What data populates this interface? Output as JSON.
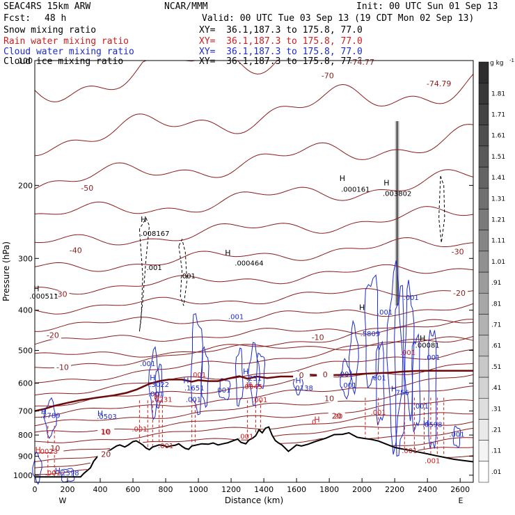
{
  "header": {
    "model": "SEAC4RS 15km ARW",
    "org": "NCAR/MMM",
    "init": "Init: 00 UTC Sun 01 Sep 13",
    "fcst_label": "Fcst:",
    "fcst_value": "48 h",
    "valid": "Valid: 00 UTC Tue 03 Sep 13 (19 CDT Mon 02 Sep 13)"
  },
  "fields": [
    {
      "name": "Snow mixing ratio",
      "xy": "XY=  36.1,187.3 to 175.8, 77.0",
      "color": "#000000"
    },
    {
      "name": "Rain water mixing ratio",
      "xy": "XY=  36.1,187.3 to 175.8, 77.0",
      "color": "#d01c1c"
    },
    {
      "name": "Cloud water mixing ratio",
      "xy": "XY=  36.1,187.3 to 175.8, 77.0",
      "color": "#1c2bd0"
    },
    {
      "name": "Cloud ice mixing ratio",
      "xy": "XY=  36.1,187.3 to 175.8, 77.0",
      "color": "#000000"
    }
  ],
  "colors": {
    "temperature": "#8b1c1c",
    "freezing_level": "#6b0a0a",
    "rain": "#d01c1c",
    "cloud": "#1c2bd0",
    "snow": "#000000",
    "terrain": "#000000"
  },
  "chart_data": {
    "type": "cross-section",
    "xlabel": "Distance (km)",
    "ylabel": "Pressure (hPa)",
    "xlim": [
      0,
      2680
    ],
    "ylim": [
      1040,
      100
    ],
    "x_ticks": [
      "0",
      "200",
      "400",
      "600",
      "800",
      "1000",
      "1200",
      "1400",
      "1600",
      "1800",
      "2000",
      "2200",
      "2400",
      "2600"
    ],
    "y_ticks": [
      "100",
      "200",
      "300",
      "400",
      "500",
      "600",
      "700",
      "800",
      "900",
      "1000"
    ],
    "orientation": {
      "left": "W",
      "right": "E"
    },
    "colorbar": {
      "unit": "g kg",
      "unit_exp": "-1",
      "labels": [
        ".01",
        ".11",
        ".21",
        ".31",
        ".41",
        ".51",
        ".61",
        ".71",
        ".81",
        ".91",
        "1.01",
        "1.11",
        "1.21",
        "1.31",
        "1.41",
        "1.51",
        "1.61",
        "1.71",
        "1.81"
      ]
    },
    "temperature_contours": [
      {
        "label": "-70",
        "x": 1790,
        "p": 110
      },
      {
        "label": "-74.77",
        "x": 2000,
        "p": 102
      },
      {
        "label": "-74.79",
        "x": 2470,
        "p": 115
      },
      {
        "label": "-50",
        "x": 320,
        "p": 205
      },
      {
        "label": "-40",
        "x": 250,
        "p": 290
      },
      {
        "label": "-30",
        "x": 160,
        "p": 370
      },
      {
        "label": "-30",
        "x": 2585,
        "p": 292
      },
      {
        "label": "-20",
        "x": 110,
        "p": 465
      },
      {
        "label": "-20",
        "x": 2595,
        "p": 368
      },
      {
        "label": "-10",
        "x": 170,
        "p": 555
      },
      {
        "label": "-10",
        "x": 1730,
        "p": 470
      },
      {
        "label": "0",
        "x": 1775,
        "p": 578
      },
      {
        "label": "0",
        "x": 1630,
        "p": 580
      },
      {
        "label": "10",
        "x": 1800,
        "p": 660
      },
      {
        "label": "20",
        "x": 1845,
        "p": 728
      },
      {
        "label": "10",
        "x": 435,
        "p": 795
      },
      {
        "label": "10",
        "x": 125,
        "p": 870
      },
      {
        "label": "20",
        "x": 435,
        "p": 900
      }
    ],
    "snow_maxima": [
      {
        "label": ".008167",
        "x": 735,
        "p": 265
      },
      {
        "label": ".000464",
        "x": 1310,
        "p": 312
      },
      {
        "label": ".000161",
        "x": 1960,
        "p": 207
      },
      {
        "label": ".003802",
        "x": 2215,
        "p": 212
      },
      {
        "label": ".000511",
        "x": 55,
        "p": 375
      },
      {
        "label": ".00081",
        "x": 2400,
        "p": 492
      }
    ],
    "snow_labels": [
      {
        "label": ".001",
        "x": 730,
        "p": 320
      },
      {
        "label": ".001",
        "x": 935,
        "p": 335
      }
    ],
    "rain_maxima": [
      {
        "label": ".0231",
        "x": 780,
        "p": 665
      },
      {
        "label": ".0345",
        "x": 1330,
        "p": 620
      },
      {
        "label": ".0023",
        "x": 80,
        "p": 888
      },
      {
        "label": ".0",
        "x": 1700,
        "p": 755
      }
    ],
    "rain_labels": [
      {
        "label": ".001",
        "x": 1000,
        "p": 580
      },
      {
        "label": ".001",
        "x": 640,
        "p": 785
      },
      {
        "label": ".001",
        "x": 800,
        "p": 860
      },
      {
        "label": ".001",
        "x": 1290,
        "p": 817
      },
      {
        "label": ".001",
        "x": 1375,
        "p": 667
      },
      {
        "label": ".001",
        "x": 2100,
        "p": 715
      },
      {
        "label": ".001",
        "x": 2290,
        "p": 885
      },
      {
        "label": ".001",
        "x": 2430,
        "p": 935
      },
      {
        "label": ".001",
        "x": 2280,
        "p": 513
      },
      {
        "label": ".001",
        "x": 110,
        "p": 1000
      },
      {
        "label": "20",
        "x": 1855,
        "p": 730
      },
      {
        "label": "10",
        "x": 430,
        "p": 795
      }
    ],
    "cloud_maxima": [
      {
        "label": ".2789",
        "x": 95,
        "p": 728
      },
      {
        "label": ".0503",
        "x": 440,
        "p": 732
      },
      {
        "label": ".3022",
        "x": 760,
        "p": 612
      },
      {
        "label": ".1651",
        "x": 975,
        "p": 625
      },
      {
        "label": ".231",
        "x": 1340,
        "p": 592
      },
      {
        "label": ".0138",
        "x": 1640,
        "p": 625
      },
      {
        "label": ".5809",
        "x": 2050,
        "p": 462
      },
      {
        "label": ".756",
        "x": 2240,
        "p": 640
      },
      {
        "label": ".2598",
        "x": 210,
        "p": 1001
      },
      {
        "label": ".0598",
        "x": 2430,
        "p": 765
      }
    ],
    "cloud_labels": [
      {
        "label": ".001",
        "x": 690,
        "p": 545
      },
      {
        "label": ".001",
        "x": 740,
        "p": 645
      },
      {
        "label": ".001",
        "x": 970,
        "p": 665
      },
      {
        "label": ".001",
        "x": 1150,
        "p": 632
      },
      {
        "label": ".001",
        "x": 1230,
        "p": 420
      },
      {
        "label": ".001",
        "x": 1900,
        "p": 578
      },
      {
        "label": ".001",
        "x": 1920,
        "p": 615
      },
      {
        "label": ".001",
        "x": 2100,
        "p": 590
      },
      {
        "label": ".001",
        "x": 2140,
        "p": 410
      },
      {
        "label": ".001",
        "x": 2300,
        "p": 378
      },
      {
        "label": ".001",
        "x": 2430,
        "p": 527
      },
      {
        "label": ".001",
        "x": 2360,
        "p": 690
      },
      {
        "label": ".001",
        "x": 2580,
        "p": 808
      }
    ],
    "h_markers": [
      {
        "x": 665,
        "p": 245,
        "c": "snow"
      },
      {
        "x": 1180,
        "p": 295,
        "c": "snow"
      },
      {
        "x": 1880,
        "p": 195,
        "c": "snow"
      },
      {
        "x": 2150,
        "p": 200,
        "c": "snow"
      },
      {
        "x": 10,
        "p": 360,
        "c": "snow"
      },
      {
        "x": 2000,
        "p": 400,
        "c": "snow"
      },
      {
        "x": 2370,
        "p": 475,
        "c": "snow"
      },
      {
        "x": 720,
        "p": 590,
        "c": "cloud"
      },
      {
        "x": 925,
        "p": 600,
        "c": "cloud"
      },
      {
        "x": 1290,
        "p": 570,
        "c": "cloud"
      },
      {
        "x": 1610,
        "p": 600,
        "c": "cloud"
      },
      {
        "x": 2195,
        "p": 628,
        "c": "cloud"
      },
      {
        "x": 55,
        "p": 712,
        "c": "cloud"
      },
      {
        "x": 400,
        "p": 720,
        "c": "cloud"
      },
      {
        "x": 140,
        "p": 990,
        "c": "cloud"
      },
      {
        "x": 2390,
        "p": 760,
        "c": "cloud"
      },
      {
        "x": 745,
        "p": 655,
        "c": "rain"
      },
      {
        "x": 1310,
        "p": 615,
        "c": "rain"
      },
      {
        "x": 20,
        "p": 880,
        "c": "rain"
      },
      {
        "x": 1725,
        "p": 745,
        "c": "rain"
      }
    ],
    "terrain": [
      [
        0,
        1009
      ],
      [
        280,
        1009
      ],
      [
        300,
        990
      ],
      [
        340,
        960
      ],
      [
        360,
        925
      ],
      [
        380,
        905
      ],
      [
        400,
        890
      ],
      [
        430,
        880
      ],
      [
        460,
        870
      ],
      [
        480,
        860
      ],
      [
        500,
        850
      ],
      [
        520,
        845
      ],
      [
        550,
        855
      ],
      [
        570,
        846
      ],
      [
        600,
        830
      ],
      [
        620,
        826
      ],
      [
        640,
        835
      ],
      [
        660,
        845
      ],
      [
        680,
        860
      ],
      [
        700,
        868
      ],
      [
        720,
        855
      ],
      [
        740,
        850
      ],
      [
        760,
        845
      ],
      [
        790,
        848
      ],
      [
        810,
        855
      ],
      [
        830,
        850
      ],
      [
        860,
        846
      ],
      [
        880,
        840
      ],
      [
        900,
        852
      ],
      [
        920,
        862
      ],
      [
        940,
        866
      ],
      [
        960,
        850
      ],
      [
        990,
        845
      ],
      [
        1020,
        840
      ],
      [
        1060,
        842
      ],
      [
        1090,
        836
      ],
      [
        1120,
        845
      ],
      [
        1150,
        840
      ],
      [
        1180,
        835
      ],
      [
        1210,
        826
      ],
      [
        1240,
        818
      ],
      [
        1260,
        833
      ],
      [
        1290,
        840
      ],
      [
        1310,
        822
      ],
      [
        1330,
        815
      ],
      [
        1350,
        803
      ],
      [
        1370,
        777
      ],
      [
        1390,
        790
      ],
      [
        1410,
        770
      ],
      [
        1430,
        765
      ],
      [
        1450,
        800
      ],
      [
        1470,
        825
      ],
      [
        1490,
        836
      ],
      [
        1510,
        845
      ],
      [
        1530,
        860
      ],
      [
        1550,
        876
      ],
      [
        1570,
        864
      ],
      [
        1600,
        845
      ],
      [
        1630,
        850
      ],
      [
        1670,
        842
      ],
      [
        1720,
        828
      ],
      [
        1780,
        814
      ],
      [
        1830,
        798
      ],
      [
        1880,
        797
      ],
      [
        1920,
        790
      ],
      [
        1970,
        810
      ],
      [
        2010,
        815
      ],
      [
        2060,
        820
      ],
      [
        2100,
        827
      ],
      [
        2150,
        842
      ],
      [
        2200,
        857
      ],
      [
        2250,
        865
      ],
      [
        2300,
        872
      ],
      [
        2350,
        880
      ],
      [
        2400,
        888
      ],
      [
        2450,
        897
      ],
      [
        2500,
        905
      ],
      [
        2560,
        915
      ],
      [
        2620,
        922
      ],
      [
        2680,
        928
      ]
    ],
    "freezing_level": [
      [
        0,
        700
      ],
      [
        60,
        692
      ],
      [
        120,
        680
      ],
      [
        200,
        669
      ],
      [
        280,
        659
      ],
      [
        380,
        650
      ],
      [
        480,
        642
      ],
      [
        560,
        633
      ],
      [
        620,
        622
      ],
      [
        660,
        612
      ],
      [
        700,
        602
      ],
      [
        760,
        593
      ],
      [
        820,
        588
      ],
      [
        900,
        588
      ],
      [
        960,
        595
      ],
      [
        1000,
        590
      ],
      [
        1060,
        593
      ],
      [
        1120,
        593
      ],
      [
        1180,
        585
      ],
      [
        1250,
        577
      ],
      [
        1300,
        585
      ],
      [
        1360,
        578
      ],
      [
        1420,
        583
      ],
      [
        1500,
        578
      ],
      [
        1580,
        578
      ],
      [
        1660,
        572
      ],
      [
        1760,
        574
      ],
      [
        1860,
        573
      ],
      [
        1960,
        571
      ],
      [
        2060,
        568
      ],
      [
        2160,
        566
      ],
      [
        2260,
        562
      ],
      [
        2360,
        560
      ],
      [
        2460,
        560
      ],
      [
        2560,
        560
      ],
      [
        2680,
        560
      ]
    ]
  }
}
